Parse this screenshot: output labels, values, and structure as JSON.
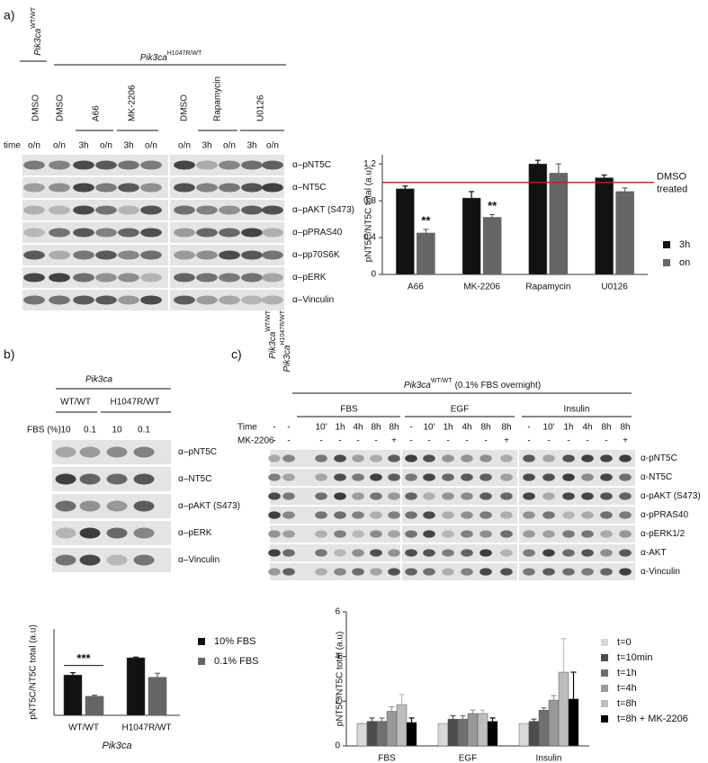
{
  "panels": {
    "a": {
      "label": "a)",
      "genotypes": [
        {
          "gene": "Pik3ca",
          "allele": "WT/WT"
        },
        {
          "gene": "Pik3ca",
          "allele": "H1047R/WT"
        }
      ],
      "treatments": [
        "DMSO",
        "DMSO",
        "A66",
        "MK-2206",
        "DMSO",
        "Rapamycin",
        "U0126"
      ],
      "time_label": "time",
      "times": [
        "o/n",
        "o/n",
        "3h",
        "o/n",
        "3h",
        "o/n",
        "o/n",
        "3h",
        "o/n",
        "3h",
        "o/n"
      ],
      "blots": [
        "α–pNT5C",
        "α–NT5C",
        "α–pAKT (S473)",
        "α–pPRAS40",
        "α–pp70S6K",
        "α–pERK",
        "α–Vinculin"
      ]
    },
    "b": {
      "label": "b)",
      "gene": "Pik3ca",
      "genotypes": [
        "WT/WT",
        "H1047R/WT"
      ],
      "fbs_label": "FBS (%)",
      "fbs": [
        "10",
        "0.1",
        "10",
        "0.1"
      ],
      "blots": [
        "α–pNT5C",
        "α–NT5C",
        "α–pAKT (S473)",
        "α–pERK",
        "α–Vinculin"
      ]
    },
    "c": {
      "label": "c)",
      "genotypes": [
        {
          "gene": "Pik3ca",
          "allele": "WT/WT"
        },
        {
          "gene": "Pik3ca",
          "allele": "H1047R/WT"
        }
      ],
      "condition": {
        "gene": "Pik3ca",
        "allele": "WT/WT",
        "text": "(0.1% FBS overnight)"
      },
      "stimuli": [
        "FBS",
        "EGF",
        "Insulin"
      ],
      "time_label": "Time",
      "times": [
        "-",
        "-",
        "10'",
        "1h",
        "4h",
        "8h",
        "8h",
        "-",
        "10'",
        "1h",
        "4h",
        "8h",
        "8h",
        "-",
        "10'",
        "1h",
        "4h",
        "8h",
        "8h"
      ],
      "inhibitor_label": "MK-2206",
      "inhibitor": [
        "-",
        "-",
        "-",
        "-",
        "-",
        "-",
        "+",
        "-",
        "-",
        "-",
        "-",
        "-",
        "+",
        "-",
        "-",
        "-",
        "-",
        "-",
        "+"
      ],
      "blots": [
        "α-pNT5C",
        "α-NT5C",
        "α-pAKT (S473)",
        "α-pPRAS40",
        "α-pERK1/2",
        "α-AKT",
        "α-Vinculin"
      ]
    }
  },
  "chart_data": [
    {
      "type": "bar",
      "ylabel": "pNT5C/NT5C total (a.u)",
      "categories": [
        "A66",
        "MK-2206",
        "Rapamycin",
        "U0126"
      ],
      "series": [
        {
          "name": "3h",
          "color": "#111111",
          "values": [
            0.93,
            0.83,
            1.2,
            1.05
          ],
          "errors": [
            0.03,
            0.07,
            0.04,
            0.03
          ]
        },
        {
          "name": "on",
          "color": "#666666",
          "values": [
            0.45,
            0.62,
            1.1,
            0.9
          ],
          "errors": [
            0.04,
            0.03,
            0.1,
            0.04
          ],
          "significance": [
            "**",
            "**",
            null,
            null
          ]
        }
      ],
      "ylim": [
        0,
        1.3
      ],
      "yticks": [
        0,
        0.4,
        0.8,
        1.2
      ],
      "reference_line": {
        "value": 1,
        "label": [
          "DMSO",
          "treated"
        ],
        "color": "#b22222"
      },
      "legend": "right"
    },
    {
      "type": "bar",
      "ylabel": "pNT5C/NT5C total (a.u)",
      "xlabel": "Pik3ca",
      "categories": [
        "WT/WT",
        "H1047R/WT"
      ],
      "series": [
        {
          "name": "10% FBS",
          "color": "#111111",
          "values": [
            0.7,
            1.0
          ],
          "errors": [
            0.04,
            0.01
          ]
        },
        {
          "name": "0.1% FBS",
          "color": "#666666",
          "values": [
            0.33,
            0.66
          ],
          "errors": [
            0.02,
            0.07
          ]
        }
      ],
      "significance": [
        "***",
        null
      ],
      "ylim": [
        0,
        1.5
      ],
      "legend": "right"
    },
    {
      "type": "bar",
      "ylabel": "pNT5C/NT5C total (a.u)",
      "categories": [
        "FBS",
        "EGF",
        "Insulin"
      ],
      "series": [
        {
          "name": "t=0",
          "color": "#d9d9d9",
          "values": [
            1.0,
            1.0,
            1.0
          ],
          "errors": [
            0.03,
            0.02,
            0.02
          ]
        },
        {
          "name": "t=10min",
          "color": "#4d4d4d",
          "values": [
            1.1,
            1.2,
            1.1
          ],
          "errors": [
            0.15,
            0.15,
            0.1
          ]
        },
        {
          "name": "t=1h",
          "color": "#707070",
          "values": [
            1.1,
            1.2,
            1.6
          ],
          "errors": [
            0.15,
            0.15,
            0.1
          ]
        },
        {
          "name": "t=4h",
          "color": "#999999",
          "values": [
            1.55,
            1.45,
            2.05
          ],
          "errors": [
            0.2,
            0.15,
            0.2
          ]
        },
        {
          "name": "t=8h",
          "color": "#bdbdbd",
          "values": [
            1.85,
            1.45,
            3.3
          ],
          "errors": [
            0.45,
            0.15,
            1.5
          ]
        },
        {
          "name": "t=8h + MK-2206",
          "color": "#000000",
          "values": [
            1.05,
            1.1,
            2.1
          ],
          "errors": [
            0.2,
            0.15,
            1.2
          ]
        }
      ],
      "ylim": [
        0,
        6
      ],
      "yticks": [
        0,
        2,
        4,
        6
      ],
      "legend": "right"
    }
  ]
}
